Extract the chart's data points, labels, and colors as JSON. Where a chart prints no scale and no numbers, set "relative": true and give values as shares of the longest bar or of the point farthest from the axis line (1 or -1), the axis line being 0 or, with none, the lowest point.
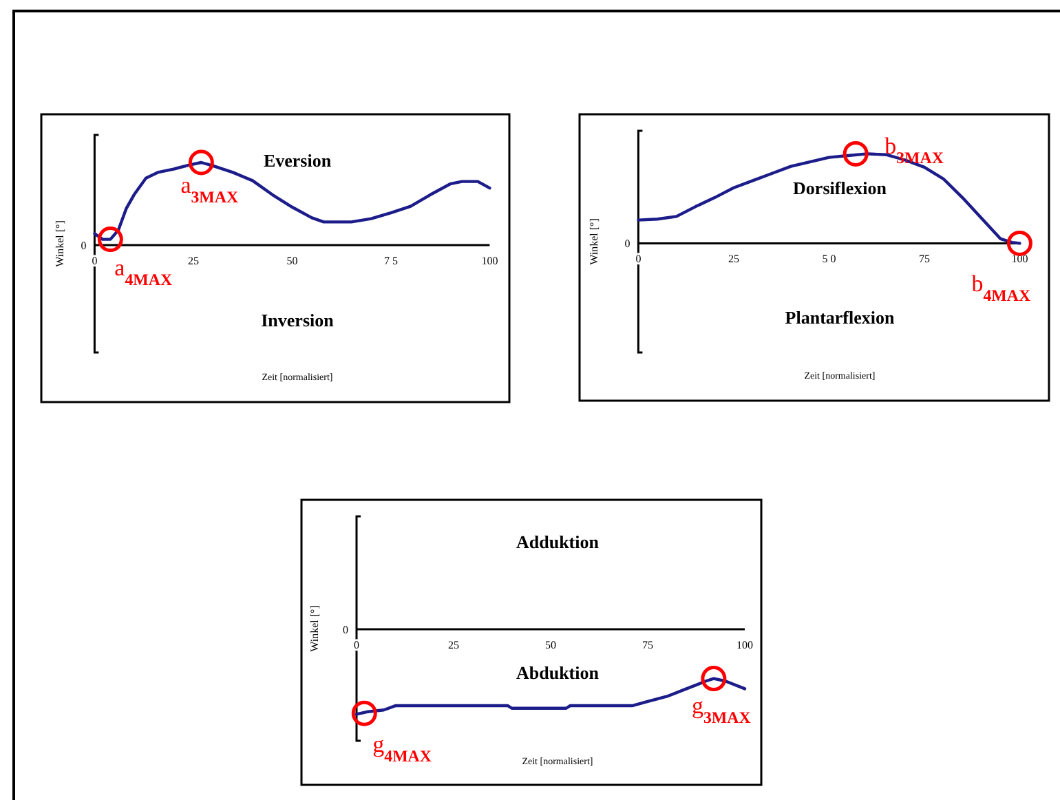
{
  "chart_data": [
    {
      "type": "line",
      "relative": true,
      "xlabel": "Zeit [normalisiert]",
      "ylabel": "Winkel [°]",
      "xlim": [
        0,
        100
      ],
      "xticks": [
        0,
        25,
        50,
        {
          "value": 75,
          "label": "7 5"
        },
        100
      ],
      "grid": false,
      "x": [
        0,
        2,
        4,
        6,
        8,
        10,
        13,
        16,
        20,
        24,
        27,
        30,
        35,
        40,
        45,
        50,
        55,
        58,
        65,
        70,
        75,
        80,
        85,
        90,
        93,
        97,
        100
      ],
      "series": [
        {
          "color": "#1c1c8a",
          "values": [
            0.14,
            0.07,
            0.07,
            0.18,
            0.44,
            0.61,
            0.81,
            0.88,
            0.92,
            0.97,
            1.0,
            0.96,
            0.88,
            0.78,
            0.61,
            0.46,
            0.33,
            0.28,
            0.28,
            0.32,
            0.39,
            0.47,
            0.61,
            0.74,
            0.77,
            0.77,
            0.69
          ]
        }
      ],
      "annotations": [
        "Eversion",
        "Inversion",
        "0",
        {
          "text": "a$_{3MAX}$",
          "x": 27,
          "y": 1.0
        },
        {
          "text": "a$_{4MAX}$",
          "x": 4,
          "y": 0.07
        }
      ]
    },
    {
      "type": "line",
      "relative": true,
      "xlabel": "Zeit [normalisiert]",
      "ylabel": "Winkel [°]",
      "xlim": [
        0,
        100
      ],
      "xticks": [
        0,
        25,
        {
          "value": 50,
          "label": "5 0"
        },
        75,
        100
      ],
      "grid": false,
      "x": [
        0,
        5,
        10,
        15,
        20,
        25,
        30,
        35,
        40,
        45,
        50,
        55,
        60,
        65,
        70,
        75,
        80,
        85,
        90,
        95,
        98,
        100
      ],
      "series": [
        {
          "color": "#1c1c8a",
          "values": [
            0.26,
            0.27,
            0.3,
            0.41,
            0.51,
            0.62,
            0.7,
            0.78,
            0.86,
            0.91,
            0.96,
            0.98,
            1.0,
            0.99,
            0.93,
            0.85,
            0.72,
            0.51,
            0.28,
            0.05,
            0.01,
            0
          ]
        }
      ],
      "annotations": [
        "Dorsiflexion",
        "Plantarflexion",
        "0",
        {
          "text": "b$_{3MAX}$",
          "x": 57,
          "y": 1.0
        },
        {
          "text": "b$_{4MAX}$",
          "x": 100,
          "y": 0
        }
      ]
    },
    {
      "type": "line",
      "relative": true,
      "xlabel": "Zeit [normalisiert]",
      "ylabel": "Winkel [°]",
      "xlim": [
        0,
        100
      ],
      "xticks": [
        0,
        25,
        50,
        75,
        100
      ],
      "grid": false,
      "x": [
        0,
        3,
        7,
        10,
        20,
        30,
        39,
        40,
        54,
        55,
        71,
        75,
        80,
        85,
        90,
        92,
        95,
        100
      ],
      "series": [
        {
          "color": "#1c1c8a",
          "values": [
            -1.0,
            -0.97,
            -0.95,
            -0.9,
            -0.9,
            -0.9,
            -0.9,
            -0.93,
            -0.93,
            -0.9,
            -0.9,
            -0.85,
            -0.79,
            -0.7,
            -0.61,
            -0.58,
            -0.61,
            -0.7
          ]
        }
      ],
      "annotations": [
        "Adduktion",
        "Abduktion",
        "0",
        {
          "text": "g$_{3MAX}$",
          "x": 92,
          "y": -0.58
        },
        {
          "text": "g$_{4MAX}$",
          "x": 2,
          "y": -0.99
        }
      ]
    }
  ]
}
